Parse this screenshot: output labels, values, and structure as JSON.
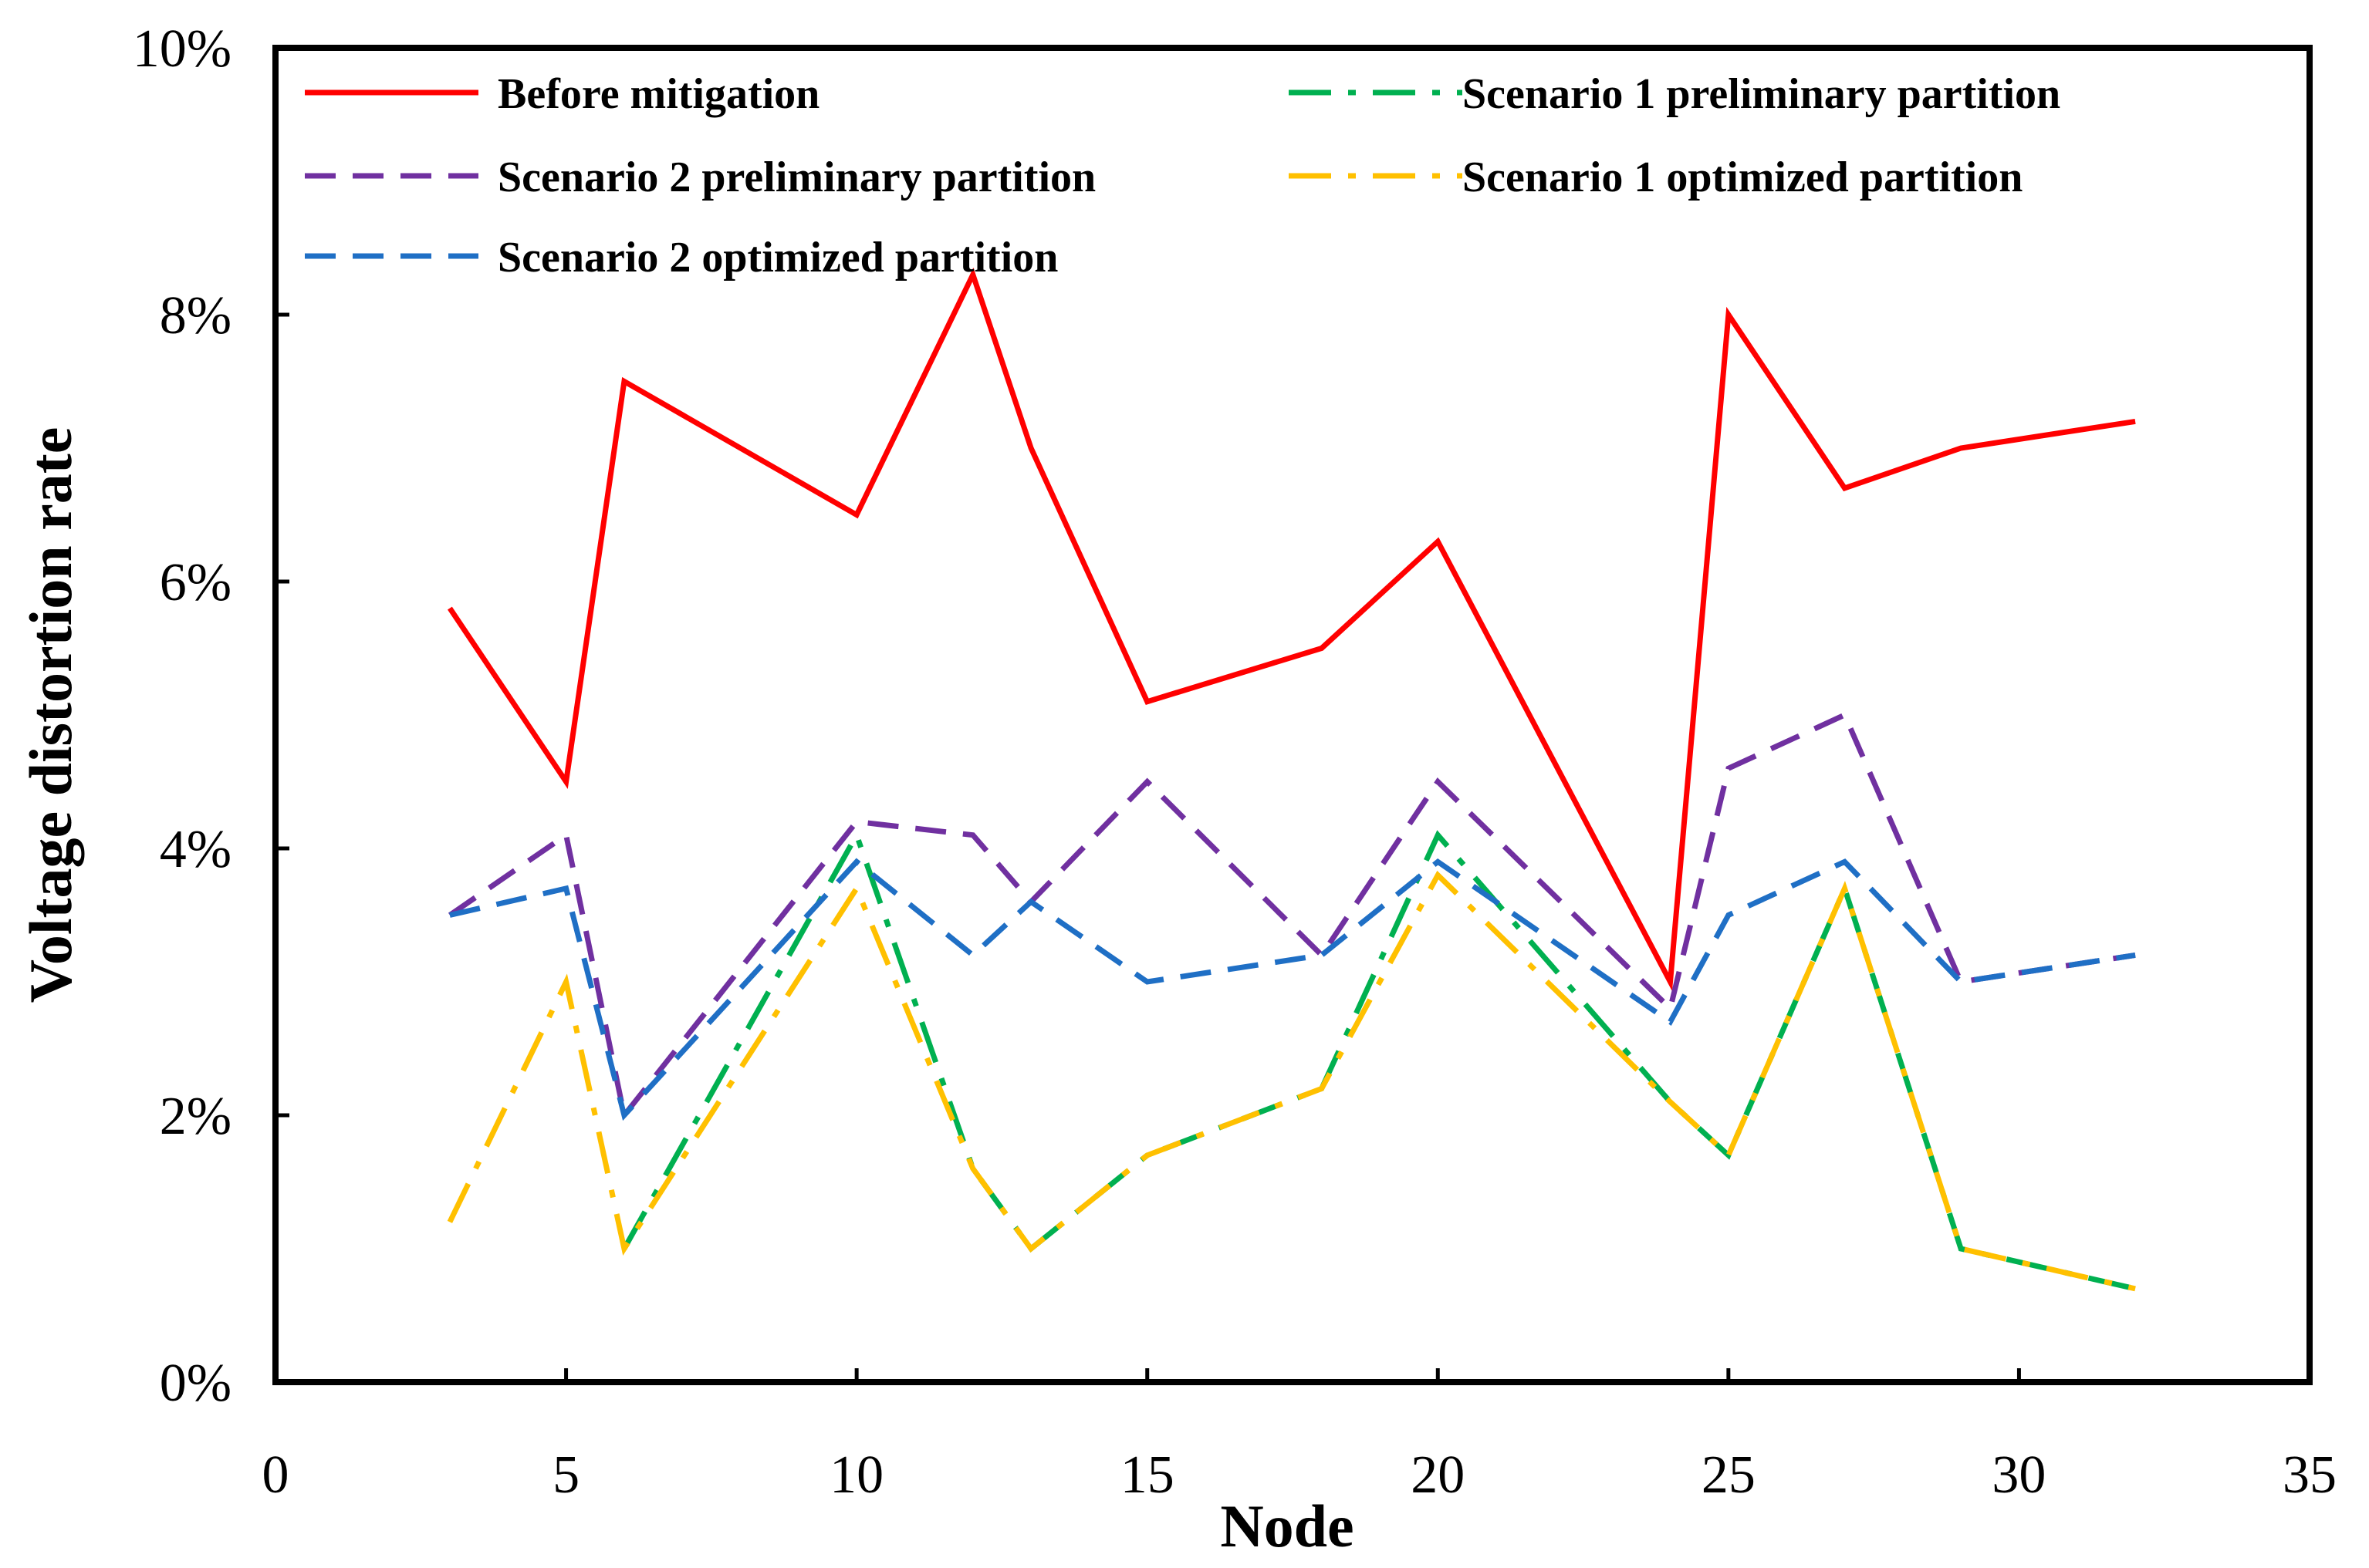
{
  "chart_data": {
    "type": "line",
    "title": "",
    "xlabel": "Node",
    "ylabel": "Voltage distortion rate",
    "xlim": [
      0,
      35
    ],
    "ylim": [
      0,
      10
    ],
    "x_ticks": [
      0,
      5,
      10,
      15,
      20,
      25,
      30,
      35
    ],
    "y_ticks": [
      0,
      2,
      4,
      6,
      8,
      10
    ],
    "y_tick_labels": [
      "0%",
      "2%",
      "4%",
      "6%",
      "8%",
      "10%"
    ],
    "grid": false,
    "legend_position": "top",
    "x": [
      3,
      5,
      6,
      10,
      12,
      13,
      15,
      18,
      20,
      24,
      25,
      27,
      29,
      32
    ],
    "series": [
      {
        "name": "Before mitigation",
        "color": "#ff0000",
        "style": "solid",
        "values": [
          5.8,
          4.5,
          7.5,
          6.5,
          8.3,
          7.0,
          5.1,
          5.5,
          6.3,
          3.0,
          8.0,
          6.7,
          7.0,
          7.2
        ]
      },
      {
        "name": "Scenario 1 preliminary partition",
        "color": "#00b050",
        "style": "dashdot",
        "values": [
          null,
          null,
          1.0,
          4.1,
          1.6,
          1.0,
          1.7,
          2.2,
          4.1,
          2.1,
          1.7,
          3.7,
          1.0,
          0.7
        ]
      },
      {
        "name": "Scenario 2 preliminary partition",
        "color": "#7030a0",
        "style": "dash",
        "values": [
          3.5,
          4.1,
          2.0,
          4.2,
          4.1,
          3.6,
          4.5,
          3.2,
          4.5,
          2.8,
          4.6,
          5.0,
          3.0,
          3.2
        ]
      },
      {
        "name": "Scenario 1 optimized partition",
        "color": "#ffc000",
        "style": "dashdot",
        "values": [
          1.2,
          3.0,
          1.0,
          3.7,
          1.6,
          1.0,
          1.7,
          2.2,
          3.8,
          2.1,
          1.7,
          3.7,
          1.0,
          0.7
        ]
      },
      {
        "name": "Scenario 2 optimized partition",
        "color": "#1f6fc5",
        "style": "dash",
        "values": [
          3.5,
          3.7,
          2.0,
          3.9,
          3.2,
          3.6,
          3.0,
          3.2,
          3.9,
          2.7,
          3.5,
          3.9,
          3.0,
          3.2
        ]
      }
    ]
  }
}
